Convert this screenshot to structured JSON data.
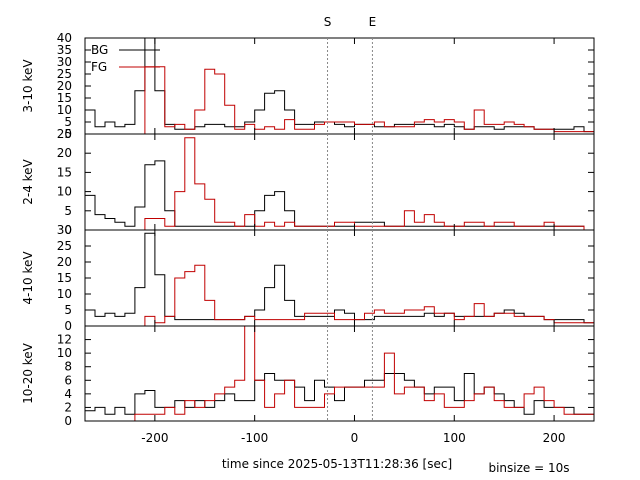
{
  "chart_data": {
    "type": "line",
    "step": true,
    "xlabel": "time since 2025-05-13T11:28:36 [sec]",
    "binsize_label": "binsize = 10s",
    "xlim": [
      -270,
      240
    ],
    "xticks": [
      -200,
      -100,
      0,
      100,
      200
    ],
    "markers": [
      {
        "label": "S",
        "x": -27
      },
      {
        "label": "E",
        "x": 18
      }
    ],
    "legend": {
      "placement": "top-left",
      "entries": [
        {
          "name": "BG",
          "color": "#000000"
        },
        {
          "name": "FG",
          "color": "#c00000"
        }
      ]
    },
    "x_edges": [
      -270,
      -260,
      -250,
      -240,
      -230,
      -220,
      -210,
      -200,
      -190,
      -180,
      -170,
      -160,
      -150,
      -140,
      -130,
      -120,
      -110,
      -100,
      -90,
      -80,
      -70,
      -60,
      -50,
      -40,
      -30,
      -20,
      -10,
      0,
      10,
      20,
      30,
      40,
      50,
      60,
      70,
      80,
      90,
      100,
      110,
      120,
      130,
      140,
      150,
      160,
      170,
      180,
      190,
      200,
      210,
      220,
      230,
      240
    ],
    "panels": [
      {
        "ylabel": "3-10 keV",
        "ylim": [
          0,
          40
        ],
        "yticks": [
          0,
          5,
          10,
          15,
          20,
          25,
          30,
          35,
          40
        ],
        "series": [
          {
            "name": "BG",
            "color": "#000000",
            "values": [
              10,
              3,
              5,
              3,
              4,
              18,
              40,
              18,
              4,
              2,
              2,
              3,
              4,
              4,
              3,
              3,
              5,
              10,
              17,
              18,
              10,
              4,
              4,
              5,
              5,
              4,
              3,
              4,
              4,
              3,
              3,
              4,
              4,
              4,
              4,
              3,
              4,
              3,
              2,
              3,
              3,
              2,
              3,
              3,
              3,
              2,
              2,
              2,
              2,
              3,
              1
            ]
          },
          {
            "name": "FG",
            "color": "#c00000",
            "values": [
              0,
              0,
              0,
              0,
              0,
              0,
              28,
              28,
              3,
              4,
              2,
              10,
              27,
              25,
              12,
              2,
              4,
              2,
              3,
              2,
              6,
              2,
              2,
              4,
              5,
              5,
              5,
              4,
              4,
              5,
              3,
              3,
              3,
              5,
              6,
              5,
              6,
              5,
              2,
              10,
              4,
              4,
              5,
              4,
              3,
              2,
              2,
              1,
              1,
              1,
              1
            ]
          }
        ]
      },
      {
        "ylabel": "2-4 keV",
        "ylim": [
          0,
          25
        ],
        "yticks": [
          0,
          5,
          10,
          15,
          20,
          25
        ],
        "series": [
          {
            "name": "BG",
            "color": "#000000",
            "values": [
              9,
              4,
              3,
              2,
              1,
              6,
              17,
              18,
              5,
              1,
              1,
              1,
              1,
              1,
              1,
              1,
              1,
              5,
              9,
              10,
              5,
              1,
              1,
              1,
              1,
              1,
              1,
              2,
              2,
              2,
              1,
              1,
              1,
              1,
              1,
              1,
              1,
              1,
              1,
              1,
              1,
              1,
              1,
              1,
              1,
              1,
              1,
              1,
              1,
              1,
              0
            ]
          },
          {
            "name": "FG",
            "color": "#c00000",
            "values": [
              0,
              0,
              0,
              0,
              0,
              0,
              3,
              3,
              1,
              10,
              24,
              12,
              8,
              2,
              2,
              1,
              4,
              1,
              2,
              1,
              2,
              1,
              1,
              1,
              1,
              2,
              2,
              1,
              1,
              1,
              1,
              1,
              5,
              2,
              4,
              2,
              1,
              1,
              2,
              2,
              1,
              2,
              2,
              1,
              1,
              1,
              2,
              1,
              1,
              1,
              0
            ]
          }
        ]
      },
      {
        "ylabel": "4-10 keV",
        "ylim": [
          0,
          30
        ],
        "yticks": [
          0,
          5,
          10,
          15,
          20,
          25,
          30
        ],
        "series": [
          {
            "name": "BG",
            "color": "#000000",
            "values": [
              5,
              3,
              4,
              3,
              4,
              12,
              29,
              16,
              3,
              2,
              2,
              2,
              2,
              2,
              2,
              2,
              3,
              5,
              12,
              19,
              8,
              3,
              3,
              3,
              3,
              5,
              4,
              2,
              2,
              3,
              3,
              3,
              3,
              3,
              4,
              3,
              4,
              3,
              3,
              3,
              3,
              4,
              5,
              4,
              3,
              3,
              2,
              2,
              2,
              2,
              1
            ]
          },
          {
            "name": "FG",
            "color": "#c00000",
            "values": [
              0,
              0,
              0,
              0,
              0,
              0,
              3,
              1,
              3,
              15,
              17,
              19,
              8,
              2,
              2,
              2,
              3,
              2,
              2,
              2,
              2,
              2,
              4,
              4,
              4,
              2,
              2,
              2,
              4,
              5,
              4,
              4,
              5,
              5,
              6,
              4,
              4,
              2,
              3,
              7,
              3,
              4,
              4,
              3,
              3,
              3,
              2,
              1,
              1,
              1,
              1
            ]
          }
        ]
      },
      {
        "ylabel": "10-20 keV",
        "ylim": [
          0,
          14
        ],
        "yticks": [
          0,
          2,
          4,
          6,
          8,
          10,
          12
        ],
        "series": [
          {
            "name": "BG",
            "color": "#000000",
            "values": [
              1.5,
              2,
              1,
              2,
              1,
              4,
              4.5,
              2,
              2,
              3,
              2,
              3,
              2,
              3,
              4,
              3,
              3,
              6,
              7,
              6,
              6,
              5,
              3,
              6,
              5,
              3,
              5,
              5,
              6,
              6,
              7,
              7,
              6,
              5,
              4,
              5,
              5,
              3,
              7,
              4,
              5,
              4,
              3,
              2,
              1,
              3,
              2,
              2,
              2,
              1,
              1
            ]
          },
          {
            "name": "FG",
            "color": "#c00000",
            "values": [
              0,
              0,
              0,
              0,
              0,
              1,
              1,
              1,
              2,
              1,
              3,
              2,
              3,
              4,
              5,
              6,
              14,
              6,
              2,
              4,
              6,
              2,
              2,
              2,
              4,
              5,
              5,
              5,
              5,
              5,
              10,
              4,
              5,
              5,
              3,
              4,
              2,
              2,
              3,
              4,
              5,
              3,
              2,
              2,
              4,
              5,
              3,
              2,
              1,
              1,
              1
            ]
          }
        ]
      }
    ]
  }
}
